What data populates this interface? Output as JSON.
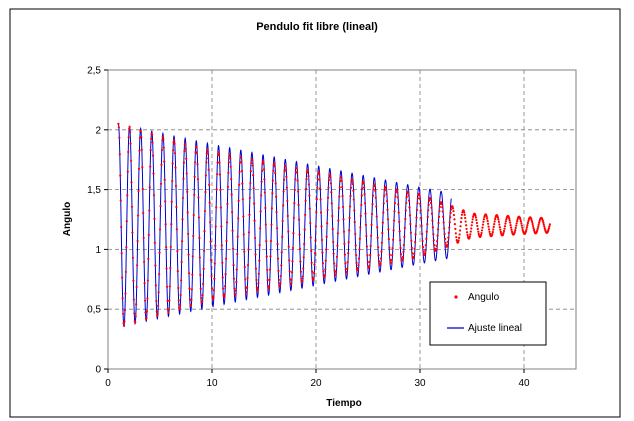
{
  "chart_data": {
    "type": "scatter",
    "title": "Pendulo fit libre (lineal)",
    "xlabel": "Tiempo",
    "ylabel": "Angulo",
    "xlim": [
      0,
      45
    ],
    "ylim": [
      0,
      2.5
    ],
    "xticks": [
      0,
      10,
      20,
      30,
      40
    ],
    "xtick_labels": [
      "0",
      "10",
      "20",
      "30",
      "40"
    ],
    "yticks": [
      0,
      0.5,
      1,
      1.5,
      2,
      2.5
    ],
    "ytick_labels": [
      "0",
      "0,5",
      "1",
      "1,5",
      "2",
      "2,5"
    ],
    "grid": "dashed",
    "legend_position": "bottom-right",
    "colors": {
      "data": "#ff0000",
      "fit": "#0000cc",
      "grid": "#808080"
    },
    "series": [
      {
        "name": "Angulo",
        "kind": "points",
        "period": 1.07,
        "equilibrium": 1.2,
        "amplitude_envelope": [
          [
            1.1,
            0.85
          ],
          [
            10,
            0.62
          ],
          [
            20,
            0.45
          ],
          [
            30,
            0.26
          ],
          [
            35,
            0.1
          ],
          [
            40,
            0.07
          ],
          [
            42.5,
            0.06
          ]
        ],
        "x_range": [
          1.0,
          42.5
        ]
      },
      {
        "name": "Ajuste lineal",
        "kind": "line",
        "period": 1.07,
        "equilibrium": 1.2,
        "amplitude_envelope": [
          [
            1.1,
            0.85
          ],
          [
            10,
            0.68
          ],
          [
            20,
            0.5
          ],
          [
            30,
            0.32
          ],
          [
            33,
            0.27
          ]
        ],
        "x_range": [
          1.0,
          33.0
        ]
      }
    ]
  }
}
